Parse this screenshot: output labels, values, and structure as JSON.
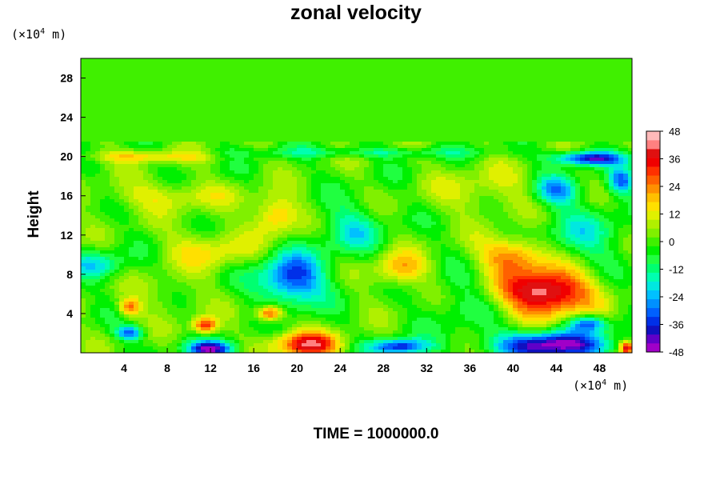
{
  "chart_data": {
    "type": "heatmap",
    "title": "zonal velocity",
    "ylabel": "Height",
    "xlabel": "",
    "x_unit_prefix": "(×10",
    "x_unit_exp": "4",
    "x_unit_suffix": " m)",
    "y_unit_prefix": "(×10",
    "y_unit_exp": "4",
    "y_unit_suffix": " m)",
    "footer": "TIME = 1000000.0",
    "xlim": [
      0,
      51
    ],
    "ylim": [
      0,
      30
    ],
    "x_ticks": [
      4,
      8,
      12,
      16,
      20,
      24,
      28,
      32,
      36,
      40,
      44,
      48
    ],
    "y_ticks": [
      4,
      8,
      12,
      16,
      20,
      24,
      28
    ],
    "colorbar": {
      "min": -48,
      "max": 48,
      "step": 4,
      "tick_labels": [
        48,
        36,
        24,
        12,
        0,
        -12,
        -24,
        -36,
        -48
      ],
      "colors": [
        "#a000c8",
        "#6000c8",
        "#1010c0",
        "#0030e8",
        "#0060ff",
        "#0090ff",
        "#00c0ff",
        "#00e8e0",
        "#00ffb0",
        "#00ff70",
        "#20ff40",
        "#00f000",
        "#40f000",
        "#80f000",
        "#b0f000",
        "#e0f000",
        "#ffe000",
        "#ffc000",
        "#ff9000",
        "#ff6000",
        "#ff3000",
        "#f00000",
        "#e01010",
        "#ff8080",
        "#ffbaba"
      ]
    },
    "background_value": 0,
    "features": [
      {
        "x": 19.5,
        "y": 7.5,
        "sx": 3.0,
        "sy": 2.6,
        "value": -36
      },
      {
        "x": 21.0,
        "y": 0.8,
        "sx": 3.0,
        "sy": 1.3,
        "value": 38
      },
      {
        "x": 12.0,
        "y": 0.4,
        "sx": 2.2,
        "sy": 0.8,
        "value": -42
      },
      {
        "x": 29.5,
        "y": 0.6,
        "sx": 2.6,
        "sy": 0.8,
        "value": -38
      },
      {
        "x": 43.5,
        "y": 0.8,
        "sx": 5.0,
        "sy": 1.4,
        "value": -48
      },
      {
        "x": 43.0,
        "y": 6.2,
        "sx": 4.0,
        "sy": 2.4,
        "value": 48
      },
      {
        "x": 29.5,
        "y": 8.5,
        "sx": 2.4,
        "sy": 1.8,
        "value": 20
      },
      {
        "x": 4.5,
        "y": 4.6,
        "sx": 1.0,
        "sy": 0.9,
        "value": 26
      },
      {
        "x": 11.5,
        "y": 2.8,
        "sx": 1.1,
        "sy": 0.8,
        "value": 34
      },
      {
        "x": 17.5,
        "y": 4.0,
        "sx": 1.2,
        "sy": 0.8,
        "value": 34
      },
      {
        "x": 4.5,
        "y": 2.0,
        "sx": 1.2,
        "sy": 0.7,
        "value": -30
      },
      {
        "x": 1.5,
        "y": 9.0,
        "sx": 2.5,
        "sy": 1.5,
        "value": -18
      },
      {
        "x": 12.0,
        "y": 10.5,
        "sx": 4.0,
        "sy": 2.0,
        "value": 14
      },
      {
        "x": 37.5,
        "y": 16.5,
        "sx": 5.0,
        "sy": 2.5,
        "value": 10
      },
      {
        "x": 47.0,
        "y": 19.8,
        "sx": 3.2,
        "sy": 0.7,
        "value": -40
      },
      {
        "x": 44.0,
        "y": 16.5,
        "sx": 2.0,
        "sy": 1.5,
        "value": -26
      },
      {
        "x": 50.0,
        "y": 17.5,
        "sx": 1.2,
        "sy": 1.3,
        "value": -30
      },
      {
        "x": 46.5,
        "y": 12.0,
        "sx": 4.0,
        "sy": 3.0,
        "value": -14
      },
      {
        "x": 8.0,
        "y": 16.0,
        "sx": 6.0,
        "sy": 1.5,
        "value": 12
      },
      {
        "x": 26.0,
        "y": 20.4,
        "sx": 12.0,
        "sy": 0.5,
        "value": -12
      },
      {
        "x": 6.0,
        "y": 20.0,
        "sx": 6.0,
        "sy": 0.6,
        "value": 16
      },
      {
        "x": 18.0,
        "y": 14.0,
        "sx": 2.0,
        "sy": 2.0,
        "value": 22
      },
      {
        "x": 25.0,
        "y": 12.5,
        "sx": 3.0,
        "sy": 2.5,
        "value": -16
      },
      {
        "x": 35.0,
        "y": 5.0,
        "sx": 3.0,
        "sy": 3.0,
        "value": -8
      },
      {
        "x": 8.0,
        "y": 6.0,
        "sx": 3.0,
        "sy": 2.0,
        "value": 6
      },
      {
        "x": 47.0,
        "y": 3.0,
        "sx": 1.8,
        "sy": 0.8,
        "value": -30
      },
      {
        "x": 50.5,
        "y": 0.5,
        "sx": 0.6,
        "sy": 0.6,
        "value": 40
      },
      {
        "x": 40.0,
        "y": 10.0,
        "sx": 3.0,
        "sy": 1.8,
        "value": 26
      }
    ]
  }
}
